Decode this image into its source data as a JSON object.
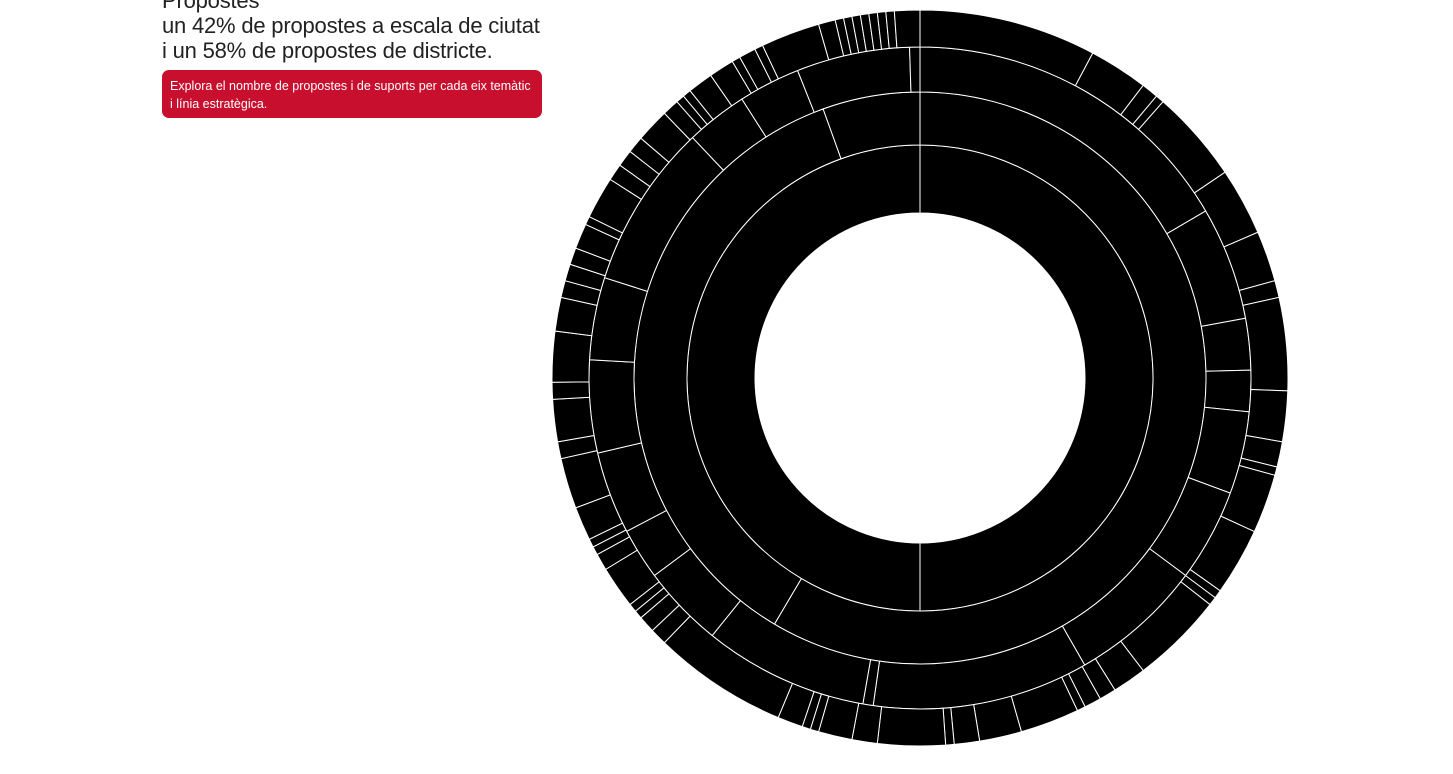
{
  "intro": {
    "line0": "Propostes",
    "line1": "un 42% de propostes a escala de ciutat",
    "line2": "i un 58% de propostes de districte."
  },
  "cta": {
    "text": "Explora el nombre de propostes i de suports per cada eix temàtic i línia estratègica."
  },
  "colors": {
    "accent": "#c8102e",
    "segment": "#000000",
    "separator": "#ffffff"
  },
  "chart_data": {
    "type": "sunburst",
    "title": "",
    "scale": [
      {
        "name": "",
        "value": 58
      },
      {
        "name": "",
        "value": 42
      }
    ],
    "rings": [
      [
        {
          "value": 50
        },
        {
          "value": 50
        }
      ],
      [
        {
          "value": 58.5
        },
        {
          "value": 36
        },
        {
          "value": 5.5
        }
      ],
      [
        {
          "value": 16.5
        },
        {
          "value": 5.5
        },
        {
          "value": 2.5
        },
        {
          "value": 2
        },
        {
          "value": 4
        },
        {
          "value": 4.5
        },
        {
          "value": 6.5
        },
        {
          "value": 10.5
        },
        {
          "value": 0.5
        },
        {
          "value": 8
        },
        {
          "value": 4
        },
        {
          "value": 2.5
        },
        {
          "value": 4
        },
        {
          "value": 4.5
        },
        {
          "value": 4
        },
        {
          "value": 8
        },
        {
          "value": 3
        },
        {
          "value": 3
        },
        {
          "value": 5.5
        },
        {
          "value": 0.5
        }
      ],
      [
        {
          "value": 10.5
        },
        {
          "value": 3.5
        },
        {
          "value": 1
        },
        {
          "value": 0.5
        },
        {
          "value": 5.5
        },
        {
          "value": 4
        },
        {
          "value": 3
        },
        {
          "value": 1
        },
        {
          "value": 5.5
        },
        {
          "value": 3
        },
        {
          "value": 1.5
        },
        {
          "value": 0.5
        },
        {
          "value": 3.5
        },
        {
          "value": 4
        },
        {
          "value": 0.5
        },
        {
          "value": 0.5
        },
        {
          "value": 5.5
        },
        {
          "value": 2
        },
        {
          "value": 1
        },
        {
          "value": 1
        },
        {
          "value": 0.5
        },
        {
          "value": 3.5
        },
        {
          "value": 2.5
        },
        {
          "value": 1.5
        },
        {
          "value": 0.5
        },
        {
          "value": 4
        },
        {
          "value": 1.5
        },
        {
          "value": 2
        },
        {
          "value": 0.5
        },
        {
          "value": 0.5
        },
        {
          "value": 1.5
        },
        {
          "value": 8
        },
        {
          "value": 1
        },
        {
          "value": 1
        },
        {
          "value": 0.5
        },
        {
          "value": 0.5
        },
        {
          "value": 2.5
        },
        {
          "value": 1
        },
        {
          "value": 0.5
        },
        {
          "value": 0.5
        },
        {
          "value": 2
        },
        {
          "value": 3
        },
        {
          "value": 1
        },
        {
          "value": 2.5
        },
        {
          "value": 1
        },
        {
          "value": 3
        },
        {
          "value": 2
        },
        {
          "value": 1
        },
        {
          "value": 1
        },
        {
          "value": 1
        },
        {
          "value": 1.5
        },
        {
          "value": 0.5
        },
        {
          "value": 2.5
        },
        {
          "value": 1
        },
        {
          "value": 1
        },
        {
          "value": 1
        },
        {
          "value": 2
        },
        {
          "value": 1
        },
        {
          "value": 0.5
        },
        {
          "value": 0.5
        },
        {
          "value": 1.5
        },
        {
          "value": 1.5
        },
        {
          "value": 0.5
        },
        {
          "value": 1
        },
        {
          "value": 0.5
        },
        {
          "value": 3.5
        },
        {
          "value": 1
        },
        {
          "value": 0.5
        },
        {
          "value": 0.5
        },
        {
          "value": 0.5
        },
        {
          "value": 0.5
        },
        {
          "value": 0.5
        },
        {
          "value": 0.5
        },
        {
          "value": 0.5
        },
        {
          "value": 1.5
        }
      ]
    ]
  }
}
